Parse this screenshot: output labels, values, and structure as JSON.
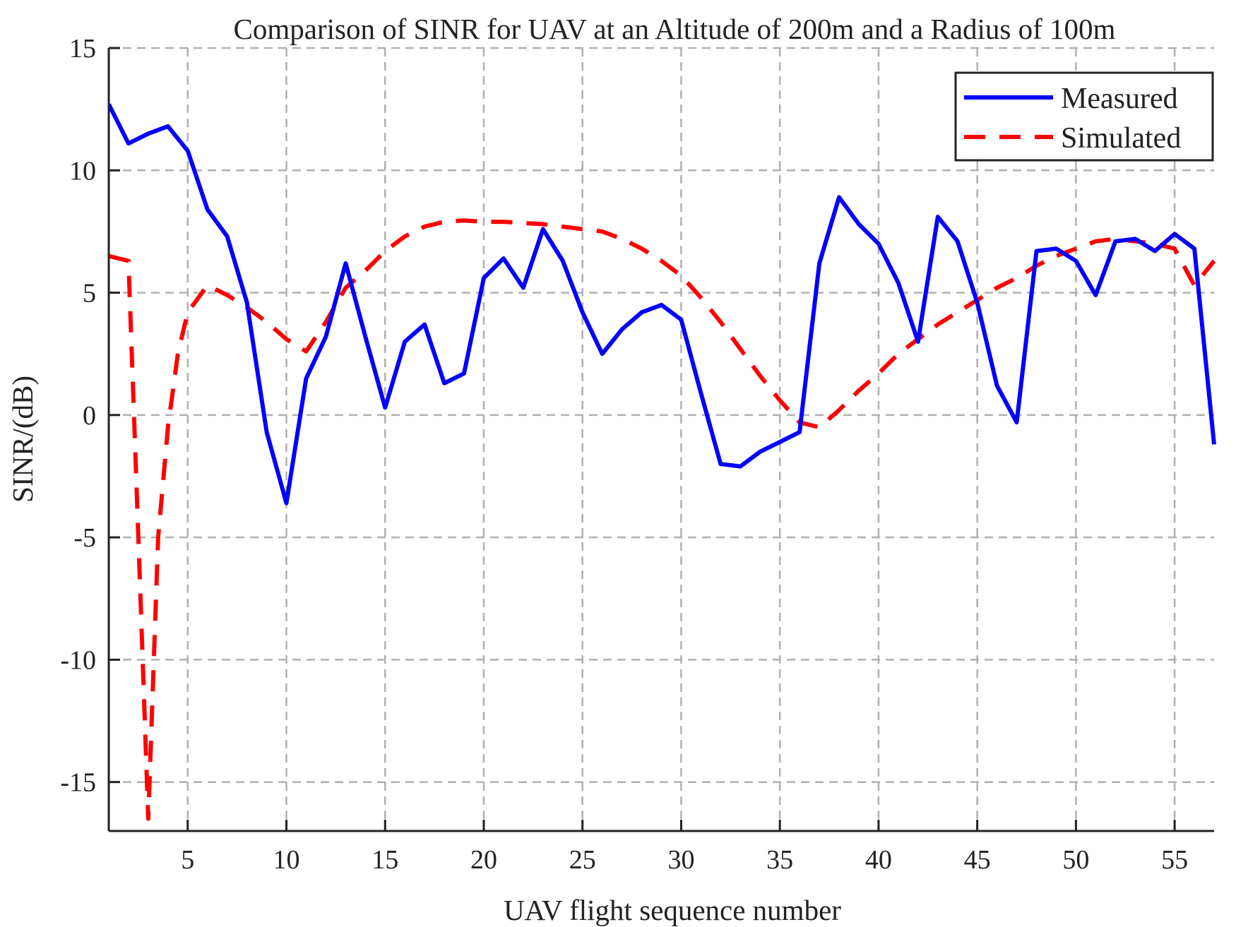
{
  "chart_data": {
    "type": "line",
    "title": "Comparison of SINR for UAV at an Altitude of 200m and a Radius of 100m",
    "xlabel": "UAV flight sequence number",
    "ylabel": "SINR/(dB)",
    "xlim": [
      1,
      57
    ],
    "ylim": [
      -17,
      15
    ],
    "xticks": [
      5,
      10,
      15,
      20,
      25,
      30,
      35,
      40,
      45,
      50,
      55
    ],
    "yticks": [
      -15,
      -10,
      -5,
      0,
      5,
      10,
      15
    ],
    "xtick_labels": [
      "5",
      "10",
      "15",
      "20",
      "25",
      "30",
      "35",
      "40",
      "45",
      "50",
      "55"
    ],
    "ytick_labels": [
      "-15",
      "-10",
      "-5",
      "0",
      "5",
      "10",
      "15"
    ],
    "grid": true,
    "grid_style": "dashed",
    "legend_position": "top-right",
    "series": [
      {
        "name": "Measured",
        "color": "#0000ff",
        "style": "solid",
        "x": [
          1,
          2,
          3,
          4,
          5,
          6,
          7,
          8,
          9,
          10,
          11,
          12,
          13,
          14,
          15,
          16,
          17,
          18,
          19,
          20,
          21,
          22,
          23,
          24,
          25,
          26,
          27,
          28,
          29,
          30,
          31,
          32,
          33,
          34,
          35,
          36,
          37,
          38,
          39,
          40,
          41,
          42,
          43,
          44,
          45,
          46,
          47,
          48,
          49,
          50,
          51,
          52,
          53,
          54,
          55,
          56,
          57
        ],
        "values": [
          12.7,
          11.1,
          11.5,
          11.8,
          10.8,
          8.4,
          7.3,
          4.6,
          -0.7,
          -3.6,
          1.5,
          3.2,
          6.2,
          3.2,
          0.3,
          3.0,
          3.7,
          1.3,
          1.7,
          5.6,
          6.4,
          5.2,
          7.6,
          6.3,
          4.2,
          2.5,
          3.5,
          4.2,
          4.5,
          3.9,
          0.9,
          -2.0,
          -2.1,
          -1.5,
          -1.1,
          -0.7,
          6.2,
          8.9,
          7.8,
          7.0,
          5.4,
          3.0,
          8.1,
          7.1,
          4.6,
          1.2,
          -0.3,
          6.7,
          6.8,
          6.3,
          4.9,
          7.1,
          7.2,
          6.7,
          7.4,
          6.8,
          -1.2
        ]
      },
      {
        "name": "Simulated",
        "color": "#ff0000",
        "style": "dashed",
        "x": [
          1,
          2,
          2.5,
          3,
          3.5,
          4,
          4.5,
          5,
          6,
          7,
          8,
          9,
          10,
          11,
          12,
          13,
          14,
          15,
          16,
          17,
          18,
          19,
          20,
          21,
          22,
          23,
          24,
          25,
          26,
          27,
          28,
          29,
          30,
          31,
          32,
          33,
          34,
          35,
          36,
          37,
          38,
          39,
          40,
          41,
          42,
          43,
          44,
          45,
          46,
          47,
          48,
          49,
          50,
          51,
          52,
          53,
          54,
          55,
          56,
          57
        ],
        "values": [
          6.5,
          6.3,
          -5.0,
          -16.5,
          -5.0,
          -0.5,
          2.5,
          4.2,
          5.3,
          4.9,
          4.4,
          3.8,
          3.1,
          2.6,
          3.8,
          5.2,
          5.9,
          6.7,
          7.3,
          7.7,
          7.9,
          7.95,
          7.9,
          7.9,
          7.85,
          7.8,
          7.7,
          7.6,
          7.5,
          7.2,
          6.8,
          6.3,
          5.7,
          4.8,
          3.8,
          2.7,
          1.6,
          0.6,
          -0.3,
          -0.5,
          0.2,
          1.0,
          1.7,
          2.5,
          3.1,
          3.7,
          4.2,
          4.7,
          5.2,
          5.6,
          6.1,
          6.5,
          6.8,
          7.1,
          7.2,
          7.1,
          7.0,
          6.8,
          5.3,
          6.3
        ]
      }
    ]
  }
}
